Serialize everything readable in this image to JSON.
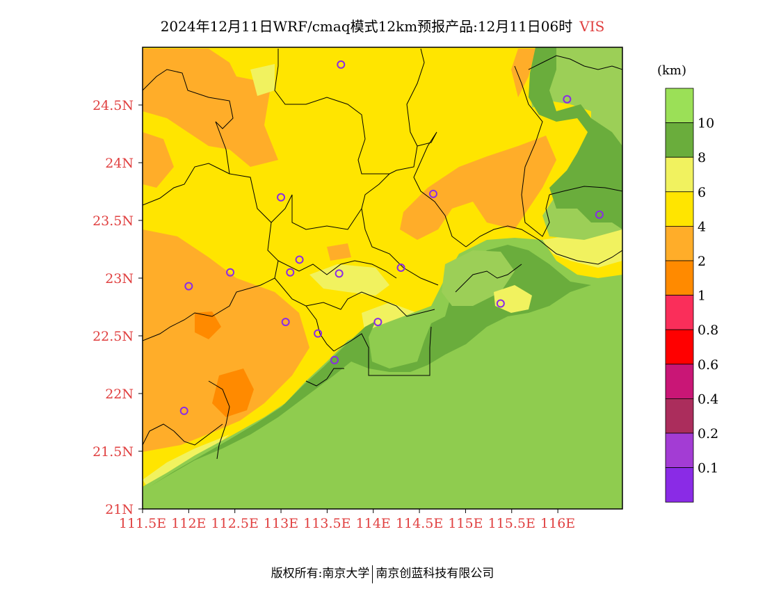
{
  "title": {
    "text": "2024年12月11日WRF/cmaq模式12km预报产品:12月11日06时",
    "variable": "VIS"
  },
  "map": {
    "lon_range": [
      111.5,
      116.7
    ],
    "lat_range": [
      21.0,
      25.0
    ],
    "x_ticks": [
      "111.5E",
      "112E",
      "112.5E",
      "113E",
      "113.5E",
      "114E",
      "114.5E",
      "115E",
      "115.5E",
      "116E"
    ],
    "y_ticks": [
      "21N",
      "21.5N",
      "22N",
      "22.5N",
      "23N",
      "23.5N",
      "24N",
      "24.5N"
    ],
    "y_tick_values": [
      21.0,
      21.5,
      22.0,
      22.5,
      23.0,
      23.5,
      24.0,
      24.5
    ],
    "x_tick_values": [
      111.5,
      112.0,
      112.5,
      113.0,
      113.5,
      114.0,
      114.5,
      115.0,
      115.5,
      116.0
    ],
    "station_markers": [
      {
        "lon": 113.65,
        "lat": 24.85
      },
      {
        "lon": 116.1,
        "lat": 24.55
      },
      {
        "lon": 113.0,
        "lat": 23.7
      },
      {
        "lon": 114.65,
        "lat": 23.73
      },
      {
        "lon": 116.45,
        "lat": 23.55
      },
      {
        "lon": 112.0,
        "lat": 22.93
      },
      {
        "lon": 112.45,
        "lat": 23.05
      },
      {
        "lon": 113.1,
        "lat": 23.05
      },
      {
        "lon": 113.2,
        "lat": 23.16
      },
      {
        "lon": 113.63,
        "lat": 23.04
      },
      {
        "lon": 114.3,
        "lat": 23.09
      },
      {
        "lon": 115.38,
        "lat": 22.78
      },
      {
        "lon": 113.05,
        "lat": 22.62
      },
      {
        "lon": 113.4,
        "lat": 22.52
      },
      {
        "lon": 114.05,
        "lat": 22.62
      },
      {
        "lon": 113.58,
        "lat": 22.29
      },
      {
        "lon": 111.95,
        "lat": 21.85
      }
    ]
  },
  "legend": {
    "unit": "(km)",
    "bins": [
      {
        "color": "#9be057",
        "label": ""
      },
      {
        "color": "#6aad3c",
        "label": "10"
      },
      {
        "color": "#f1f25f",
        "label": "8"
      },
      {
        "color": "#ffe500",
        "label": "6"
      },
      {
        "color": "#ffad29",
        "label": "4"
      },
      {
        "color": "#ff8a00",
        "label": "2"
      },
      {
        "color": "#fa2e5a",
        "label": "1"
      },
      {
        "color": "#ff0000",
        "label": "0.8"
      },
      {
        "color": "#c91676",
        "label": "0.6"
      },
      {
        "color": "#ab2d5c",
        "label": "0.4"
      },
      {
        "color": "#a33cd4",
        "label": "0.2"
      },
      {
        "color": "#8a2be6",
        "label": "0.1"
      }
    ]
  },
  "colors": {
    "ocean": "#8fcc4f",
    "clear_land": "#9ccf57",
    "coast_band": "#6aad3c",
    "axis_label": "#e04040",
    "marker": "#8a2be6"
  },
  "footer": {
    "left": "版权所有:南京大学",
    "right": "南京创蓝科技有限公司"
  }
}
